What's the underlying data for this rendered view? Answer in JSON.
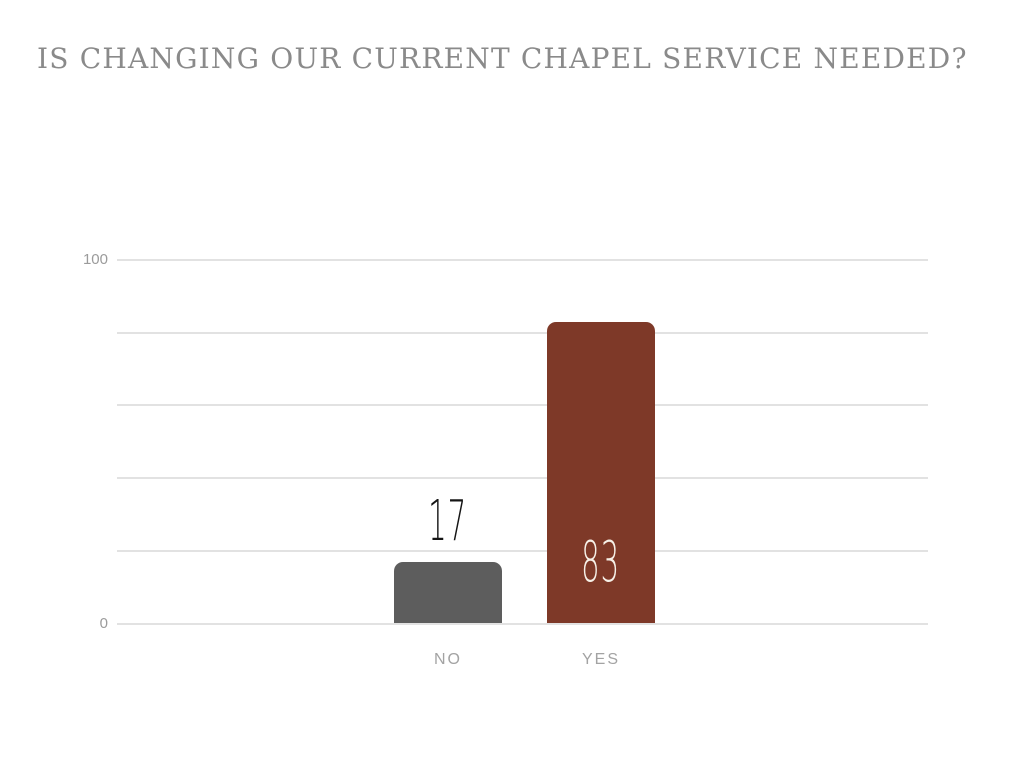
{
  "title": "IS CHANGING OUR CURRENT CHAPEL SERVICE NEEDED?",
  "colors": {
    "background": "#ffffff",
    "title_text": "#8a8a8a",
    "gridline": "#e2e2e2",
    "axis_tick_text": "#9b9b9b",
    "category_text": "#a3a3a3"
  },
  "chart_data": {
    "type": "bar",
    "title": "IS CHANGING OUR CURRENT CHAPEL SERVICE NEEDED?",
    "categories": [
      "NO",
      "YES"
    ],
    "values": [
      17,
      83
    ],
    "xlabel": "",
    "ylabel": "",
    "ylim": [
      0,
      100
    ],
    "gridline_step": 20,
    "labeled_yticks": [
      0,
      100
    ],
    "grid": true,
    "legend": false,
    "bar_colors": [
      "#5d5d5d",
      "#7e3928"
    ],
    "value_label_colors": [
      "#151515",
      "#f6f0e7"
    ],
    "value_label_positions": [
      "above",
      "inside"
    ]
  }
}
